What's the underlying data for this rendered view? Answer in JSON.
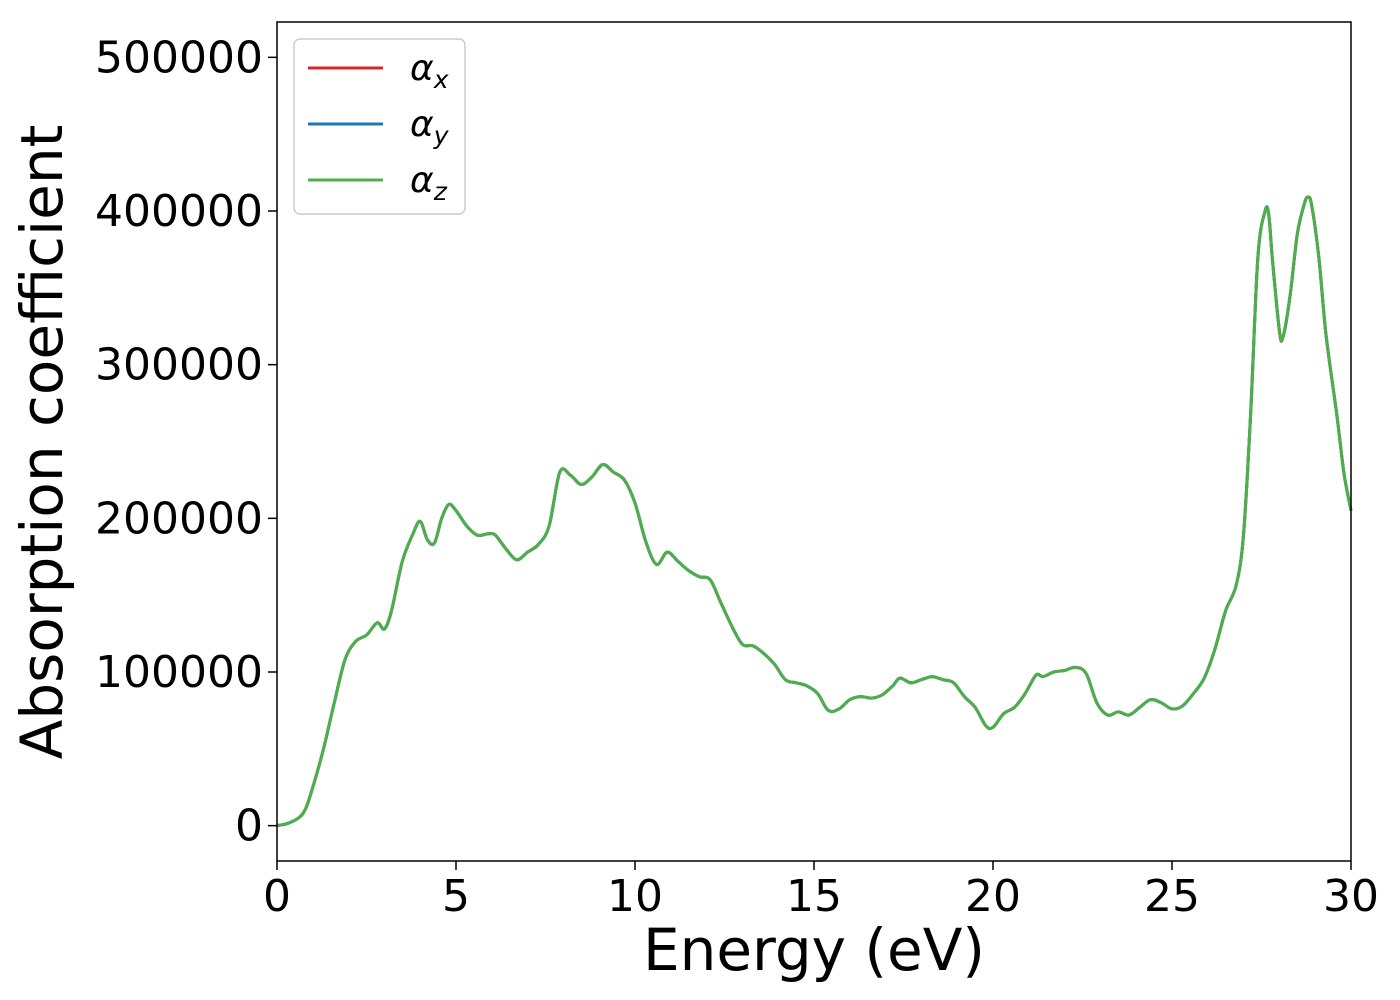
{
  "chart_data": {
    "type": "line",
    "title": "",
    "xlabel": "Energy (eV)",
    "ylabel": "Absorption coefficient",
    "xlim": [
      0,
      30
    ],
    "ylim": [
      -23000,
      523000
    ],
    "xticks": [
      0,
      5,
      10,
      15,
      20,
      25,
      30
    ],
    "yticks": [
      0,
      100000,
      200000,
      300000,
      400000,
      500000
    ],
    "xtick_labels": [
      "0",
      "5",
      "10",
      "15",
      "20",
      "25",
      "30"
    ],
    "ytick_labels": [
      "0",
      "100000",
      "200000",
      "300000",
      "400000",
      "500000"
    ],
    "grid": false,
    "legend_position": "top-left",
    "x": [
      0,
      0.3,
      0.6,
      0.8,
      1.0,
      1.3,
      1.6,
      1.9,
      2.2,
      2.5,
      2.8,
      3.0,
      3.2,
      3.5,
      3.8,
      4.0,
      4.2,
      4.4,
      4.6,
      4.8,
      5.0,
      5.3,
      5.6,
      5.9,
      6.1,
      6.4,
      6.7,
      7.0,
      7.3,
      7.6,
      7.9,
      8.2,
      8.5,
      8.8,
      9.1,
      9.4,
      9.7,
      10.0,
      10.3,
      10.6,
      10.9,
      11.2,
      11.5,
      11.8,
      12.1,
      12.4,
      12.7,
      13.0,
      13.3,
      13.6,
      13.9,
      14.2,
      14.5,
      14.8,
      15.1,
      15.4,
      15.7,
      16.0,
      16.3,
      16.6,
      16.9,
      17.2,
      17.4,
      17.7,
      18.0,
      18.3,
      18.6,
      18.9,
      19.2,
      19.5,
      19.8,
      20.0,
      20.3,
      20.6,
      20.9,
      21.2,
      21.4,
      21.7,
      22.0,
      22.3,
      22.6,
      22.9,
      23.2,
      23.5,
      23.8,
      24.1,
      24.4,
      24.7,
      25.0,
      25.3,
      25.6,
      25.9,
      26.2,
      26.5,
      26.8,
      27.0,
      27.2,
      27.4,
      27.6,
      27.7,
      27.8,
      28.0,
      28.1,
      28.3,
      28.5,
      28.7,
      28.8,
      28.9,
      29.1,
      29.3,
      29.6,
      29.8,
      30.0
    ],
    "series": [
      {
        "name": "α",
        "subscript": "x",
        "color": "#d62728",
        "values": [
          0,
          1500,
          5000,
          11000,
          25000,
          50000,
          80000,
          108000,
          120000,
          124000,
          132000,
          128000,
          140000,
          172000,
          190000,
          198000,
          186000,
          184000,
          200000,
          209000,
          205000,
          195000,
          189000,
          190000,
          189000,
          180000,
          173000,
          178000,
          183000,
          195000,
          230000,
          228000,
          222000,
          227000,
          235000,
          230000,
          225000,
          210000,
          185000,
          170000,
          178000,
          172000,
          166000,
          162000,
          160000,
          145000,
          130000,
          118000,
          117000,
          112000,
          105000,
          95000,
          93000,
          91000,
          86000,
          75000,
          76000,
          82000,
          84000,
          83000,
          85000,
          91000,
          96000,
          93000,
          95000,
          97000,
          95000,
          93000,
          84000,
          77000,
          65000,
          64000,
          73000,
          77000,
          86000,
          98000,
          97000,
          100000,
          101000,
          103000,
          99000,
          80000,
          72000,
          74000,
          72000,
          77000,
          82000,
          80000,
          76000,
          78000,
          86000,
          96000,
          115000,
          140000,
          157000,
          190000,
          270000,
          370000,
          400000,
          398000,
          370000,
          322000,
          318000,
          345000,
          385000,
          405000,
          409000,
          404000,
          370000,
          320000,
          268000,
          230000,
          205000
        ]
      },
      {
        "name": "α",
        "subscript": "y",
        "color": "#1f77b4",
        "values": [
          0,
          1500,
          5000,
          11000,
          25000,
          50000,
          80000,
          108000,
          120000,
          124000,
          132000,
          128000,
          140000,
          172000,
          190000,
          198000,
          186000,
          184000,
          200000,
          209000,
          205000,
          195000,
          189000,
          190000,
          189000,
          180000,
          173000,
          178000,
          183000,
          195000,
          230000,
          228000,
          222000,
          227000,
          235000,
          230000,
          225000,
          210000,
          185000,
          170000,
          178000,
          172000,
          166000,
          162000,
          160000,
          145000,
          130000,
          118000,
          117000,
          112000,
          105000,
          95000,
          93000,
          91000,
          86000,
          75000,
          76000,
          82000,
          84000,
          83000,
          85000,
          91000,
          96000,
          93000,
          95000,
          97000,
          95000,
          93000,
          84000,
          77000,
          65000,
          64000,
          73000,
          77000,
          86000,
          98000,
          97000,
          100000,
          101000,
          103000,
          99000,
          80000,
          72000,
          74000,
          72000,
          77000,
          82000,
          80000,
          76000,
          78000,
          86000,
          96000,
          115000,
          140000,
          157000,
          190000,
          270000,
          370000,
          400000,
          398000,
          370000,
          322000,
          318000,
          345000,
          385000,
          405000,
          409000,
          404000,
          370000,
          320000,
          268000,
          230000,
          205000
        ]
      },
      {
        "name": "α",
        "subscript": "z",
        "color": "#4daf4a",
        "values": [
          0,
          1500,
          5000,
          11000,
          25000,
          50000,
          80000,
          108000,
          120000,
          124000,
          132000,
          128000,
          140000,
          172000,
          190000,
          198000,
          186000,
          184000,
          200000,
          209000,
          205000,
          195000,
          189000,
          190000,
          189000,
          180000,
          173000,
          178000,
          183000,
          195000,
          230000,
          228000,
          222000,
          227000,
          235000,
          230000,
          225000,
          210000,
          185000,
          170000,
          178000,
          172000,
          166000,
          162000,
          160000,
          145000,
          130000,
          118000,
          117000,
          112000,
          105000,
          95000,
          93000,
          91000,
          86000,
          75000,
          76000,
          82000,
          84000,
          83000,
          85000,
          91000,
          96000,
          93000,
          95000,
          97000,
          95000,
          93000,
          84000,
          77000,
          65000,
          64000,
          73000,
          77000,
          86000,
          98000,
          97000,
          100000,
          101000,
          103000,
          99000,
          80000,
          72000,
          74000,
          72000,
          77000,
          82000,
          80000,
          76000,
          78000,
          86000,
          96000,
          115000,
          140000,
          157000,
          190000,
          270000,
          370000,
          400000,
          398000,
          370000,
          322000,
          318000,
          345000,
          385000,
          405000,
          409000,
          404000,
          370000,
          320000,
          268000,
          230000,
          205000
        ]
      }
    ]
  }
}
